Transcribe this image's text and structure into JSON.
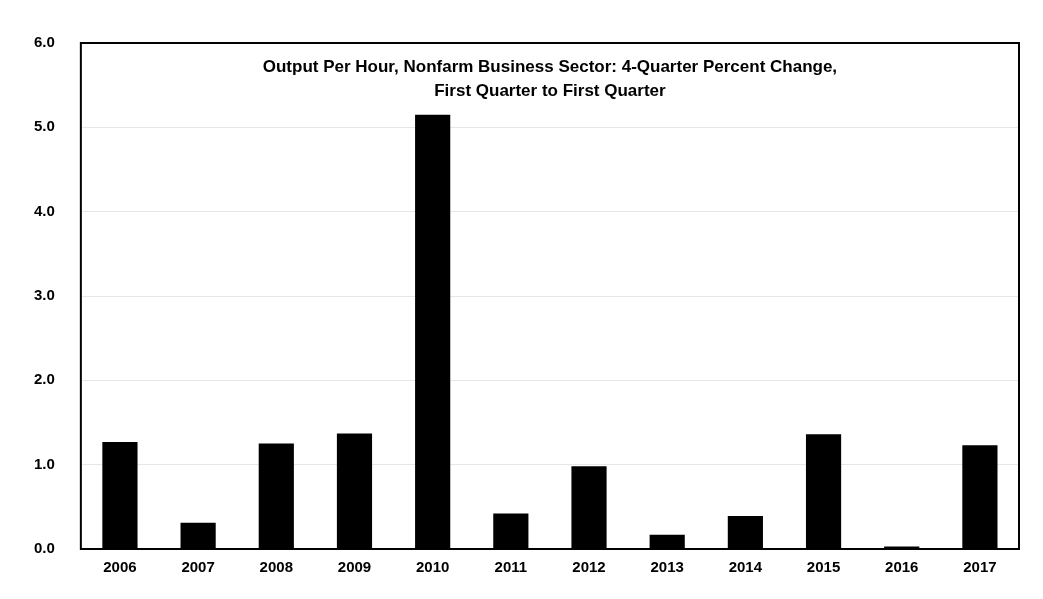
{
  "chart_data": {
    "type": "bar",
    "title": "Output Per Hour, Nonfarm Business Sector: 4-Quarter Percent Change,\nFirst Quarter to First Quarter",
    "categories": [
      "2006",
      "2007",
      "2008",
      "2009",
      "2010",
      "2011",
      "2012",
      "2013",
      "2014",
      "2015",
      "2016",
      "2017"
    ],
    "values": [
      1.27,
      0.31,
      1.25,
      1.37,
      5.15,
      0.42,
      0.98,
      0.17,
      0.39,
      1.36,
      0.03,
      1.23
    ],
    "color": "#000000",
    "ylim": [
      0,
      6
    ],
    "yticks": [
      {
        "value": 0,
        "label": "0.0"
      },
      {
        "value": 1,
        "label": "1.0"
      },
      {
        "value": 2,
        "label": "2.0"
      },
      {
        "value": 3,
        "label": "3.0"
      },
      {
        "value": 4,
        "label": "4.0"
      },
      {
        "value": 5,
        "label": "5.0"
      },
      {
        "value": 6,
        "label": "6.0"
      }
    ],
    "grid": "y",
    "legend": false
  }
}
